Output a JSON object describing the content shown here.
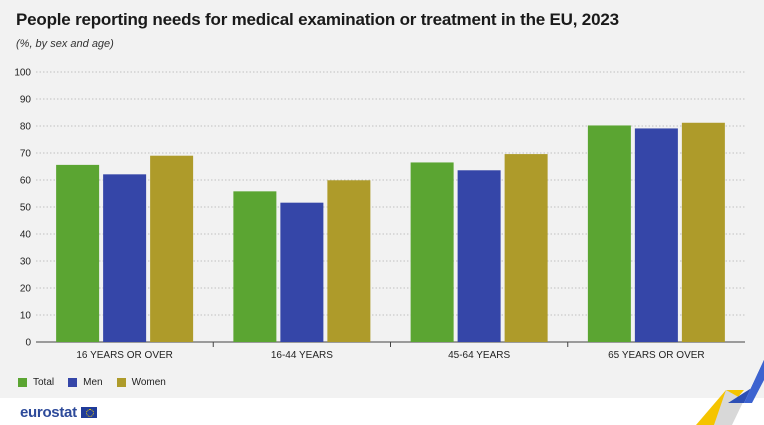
{
  "title": "People reporting needs for medical examination or treatment in the EU, 2023",
  "subtitle": "(%, by sex and age)",
  "colors": {
    "total": "#5ba532",
    "men": "#3546a8",
    "women": "#ae9b2a",
    "grid": "#b0b0b0"
  },
  "legend": [
    {
      "label": "Total",
      "color": "#5ba532"
    },
    {
      "label": "Men",
      "color": "#3546a8"
    },
    {
      "label": "Women",
      "color": "#ae9b2a"
    }
  ],
  "logo_text": "eurostat",
  "chart_data": {
    "type": "bar",
    "categories": [
      "16 YEARS OR OVER",
      "16-44 YEARS",
      "45-64 YEARS",
      "65 YEARS OR OVER"
    ],
    "series": [
      {
        "name": "Total",
        "values": [
          65.6,
          55.8,
          66.5,
          80.2
        ]
      },
      {
        "name": "Men",
        "values": [
          62.1,
          51.6,
          63.6,
          79.1
        ]
      },
      {
        "name": "Women",
        "values": [
          69.0,
          59.9,
          69.6,
          81.2
        ]
      }
    ],
    "ylim": [
      0,
      100
    ],
    "yticks": [
      "0",
      "10",
      "20",
      "30",
      "40",
      "50",
      "60",
      "70",
      "80",
      "90",
      "100"
    ],
    "grid": true,
    "legend_position": "bottom-left"
  }
}
